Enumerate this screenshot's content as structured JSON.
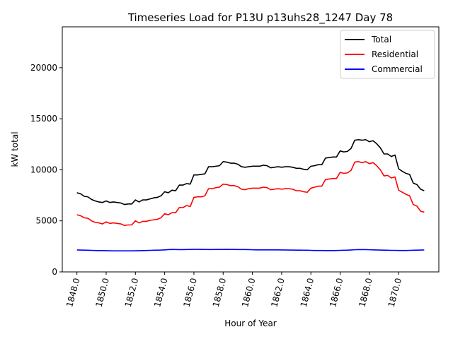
{
  "chart_data": {
    "type": "line",
    "title": "Timeseries Load for P13U p13uhs28_1247  Day 78",
    "xlabel": "Hour of Year",
    "ylabel": "kW total",
    "xlim": [
      1847.0,
      1872.75
    ],
    "ylim": [
      0,
      24000
    ],
    "xticks": [
      1848,
      1850,
      1852,
      1854,
      1856,
      1858,
      1860,
      1862,
      1864,
      1866,
      1868,
      1870
    ],
    "xtick_labels": [
      "1848.0",
      "1850.0",
      "1852.0",
      "1854.0",
      "1856.0",
      "1858.0",
      "1860.0",
      "1862.0",
      "1864.0",
      "1866.0",
      "1868.0",
      "1870.0"
    ],
    "yticks": [
      0,
      5000,
      10000,
      15000,
      20000
    ],
    "ytick_labels": [
      "0",
      "5000",
      "10000",
      "15000",
      "20000"
    ],
    "grid": false,
    "legend_position": "top-right",
    "x": [
      1848.0,
      1848.25,
      1848.5,
      1848.75,
      1849.0,
      1849.25,
      1849.5,
      1849.75,
      1850.0,
      1850.25,
      1850.5,
      1850.75,
      1851.0,
      1851.25,
      1851.5,
      1851.75,
      1852.0,
      1852.25,
      1852.5,
      1852.75,
      1853.0,
      1853.25,
      1853.5,
      1853.75,
      1854.0,
      1854.25,
      1854.5,
      1854.75,
      1855.0,
      1855.25,
      1855.5,
      1855.75,
      1856.0,
      1856.25,
      1856.5,
      1856.75,
      1857.0,
      1857.25,
      1857.5,
      1857.75,
      1858.0,
      1858.25,
      1858.5,
      1858.75,
      1859.0,
      1859.25,
      1859.5,
      1859.75,
      1860.0,
      1860.25,
      1860.5,
      1860.75,
      1861.0,
      1861.25,
      1861.5,
      1861.75,
      1862.0,
      1862.25,
      1862.5,
      1862.75,
      1863.0,
      1863.25,
      1863.5,
      1863.75,
      1864.0,
      1864.25,
      1864.5,
      1864.75,
      1865.0,
      1865.25,
      1865.5,
      1865.75,
      1866.0,
      1866.25,
      1866.5,
      1866.75,
      1867.0,
      1867.25,
      1867.5,
      1867.75,
      1868.0,
      1868.25,
      1868.5,
      1868.75,
      1869.0,
      1869.25,
      1869.5,
      1869.75,
      1870.0,
      1870.25,
      1870.5,
      1870.75,
      1871.0,
      1871.25,
      1871.5,
      1871.75
    ],
    "series": [
      {
        "name": "Total",
        "color": "#000000",
        "values": [
          7750,
          7650,
          7400,
          7350,
          7100,
          6950,
          6850,
          6800,
          6950,
          6800,
          6850,
          6800,
          6750,
          6600,
          6650,
          6650,
          7050,
          6850,
          7050,
          7050,
          7150,
          7250,
          7300,
          7450,
          7850,
          7750,
          8000,
          7950,
          8500,
          8500,
          8650,
          8600,
          9500,
          9500,
          9550,
          9600,
          10300,
          10300,
          10350,
          10400,
          10800,
          10750,
          10650,
          10650,
          10550,
          10300,
          10250,
          10300,
          10350,
          10350,
          10350,
          10450,
          10400,
          10200,
          10250,
          10300,
          10250,
          10300,
          10300,
          10250,
          10150,
          10150,
          10050,
          10000,
          10350,
          10400,
          10500,
          10500,
          11150,
          11200,
          11250,
          11250,
          11850,
          11750,
          11800,
          12100,
          12900,
          12950,
          12900,
          12950,
          12750,
          12850,
          12550,
          12150,
          11550,
          11550,
          11300,
          11450,
          10100,
          9850,
          9650,
          9550,
          8700,
          8550,
          8100,
          7950
        ]
      },
      {
        "name": "Residential",
        "color": "#ff0000",
        "values": [
          5600,
          5500,
          5300,
          5250,
          5000,
          4850,
          4800,
          4700,
          4900,
          4750,
          4800,
          4750,
          4700,
          4550,
          4600,
          4600,
          5000,
          4800,
          4950,
          4950,
          5050,
          5100,
          5150,
          5300,
          5700,
          5600,
          5800,
          5800,
          6300,
          6300,
          6500,
          6400,
          7300,
          7350,
          7350,
          7450,
          8150,
          8150,
          8250,
          8300,
          8600,
          8550,
          8450,
          8450,
          8350,
          8100,
          8050,
          8150,
          8200,
          8200,
          8200,
          8300,
          8250,
          8050,
          8100,
          8150,
          8100,
          8150,
          8150,
          8100,
          7950,
          7950,
          7850,
          7800,
          8200,
          8300,
          8400,
          8400,
          9050,
          9100,
          9150,
          9150,
          9750,
          9650,
          9700,
          9950,
          10750,
          10800,
          10700,
          10800,
          10600,
          10700,
          10400,
          10000,
          9400,
          9450,
          9200,
          9300,
          8000,
          7800,
          7600,
          7450,
          6600,
          6450,
          5950,
          5850
        ]
      },
      {
        "name": "Commercial",
        "color": "#0000ff",
        "values": [
          2150,
          2140,
          2130,
          2120,
          2110,
          2100,
          2090,
          2085,
          2080,
          2070,
          2065,
          2060,
          2060,
          2060,
          2060,
          2065,
          2070,
          2080,
          2090,
          2100,
          2110,
          2120,
          2130,
          2140,
          2160,
          2180,
          2200,
          2190,
          2180,
          2180,
          2190,
          2200,
          2210,
          2210,
          2200,
          2200,
          2190,
          2190,
          2200,
          2200,
          2200,
          2210,
          2200,
          2200,
          2190,
          2190,
          2190,
          2180,
          2170,
          2160,
          2160,
          2160,
          2160,
          2160,
          2160,
          2160,
          2150,
          2150,
          2140,
          2140,
          2130,
          2130,
          2120,
          2120,
          2110,
          2100,
          2100,
          2100,
          2090,
          2090,
          2090,
          2100,
          2110,
          2120,
          2130,
          2150,
          2170,
          2180,
          2180,
          2180,
          2170,
          2160,
          2150,
          2140,
          2130,
          2120,
          2110,
          2110,
          2100,
          2100,
          2100,
          2110,
          2120,
          2130,
          2140,
          2150
        ]
      }
    ]
  }
}
